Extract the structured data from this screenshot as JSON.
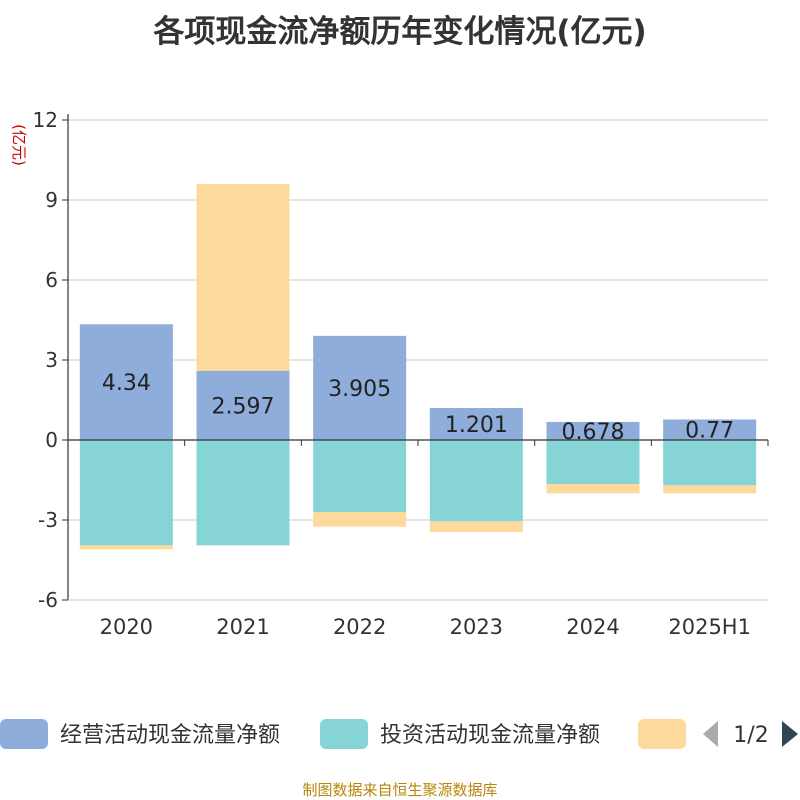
{
  "title": "各项现金流净额历年变化情况(亿元)",
  "source": "制图数据来自恒生聚源数据库",
  "colors": {
    "operating": "#8fadda",
    "investing": "#86d4d6",
    "financing": "#fdd99b",
    "axis": "#333333",
    "grid": "#cccccc",
    "unit": "#cc0000",
    "pager_arrow_inactive": "#aaaaaa",
    "pager_arrow_active": "#2f4554"
  },
  "legend": {
    "page": "1/2"
  },
  "chart_data": {
    "type": "bar",
    "stacked": true,
    "categories": [
      "2020",
      "2021",
      "2022",
      "2023",
      "2024",
      "2025H1"
    ],
    "ylabel": "(亿元)",
    "ylim": [
      -6,
      12
    ],
    "yticks": [
      -6,
      -3,
      0,
      3,
      6,
      9,
      12
    ],
    "grid": true,
    "legend_position": "bottom",
    "series": [
      {
        "name": "经营活动现金流量净额",
        "color_key": "operating",
        "values": [
          4.34,
          2.597,
          3.905,
          1.201,
          0.678,
          0.77
        ],
        "labels": [
          "4.34",
          "2.597",
          "3.905",
          "1.201",
          "0.678",
          "0.77"
        ]
      },
      {
        "name": "投资活动现金流量净额",
        "color_key": "investing",
        "values": [
          -3.95,
          -3.95,
          -2.7,
          -3.05,
          -1.65,
          -1.7
        ]
      },
      {
        "name": "",
        "color_key": "financing",
        "values": [
          -0.15,
          7.0,
          -0.55,
          -0.4,
          -0.35,
          -0.3
        ]
      }
    ]
  }
}
